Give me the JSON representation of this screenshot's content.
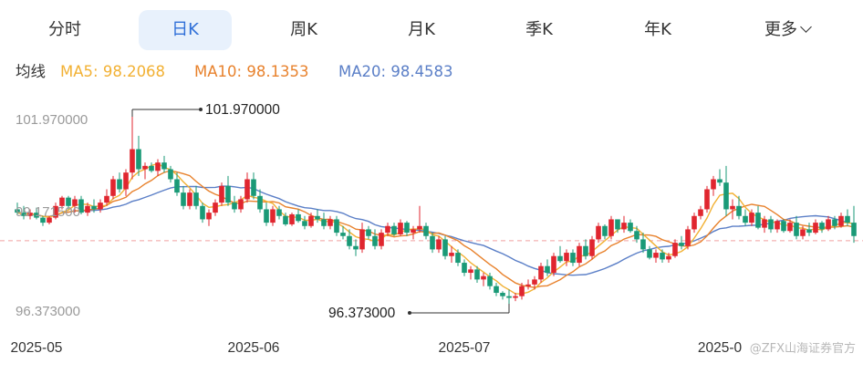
{
  "tabs": [
    {
      "label": "分时",
      "active": false
    },
    {
      "label": "日K",
      "active": true
    },
    {
      "label": "周K",
      "active": false
    },
    {
      "label": "月K",
      "active": false
    },
    {
      "label": "季K",
      "active": false
    },
    {
      "label": "年K",
      "active": false
    },
    {
      "label": "更多",
      "active": false,
      "icon": "chevron-down-icon"
    }
  ],
  "ma_legend": {
    "label": "均线",
    "ma5": "MA5: 98.2068",
    "ma10": "MA10: 98.1353",
    "ma20": "MA20: 98.4583"
  },
  "watermark": "@ZFX山海证券官方",
  "colors": {
    "up": "#e0262f",
    "down": "#1a9a77",
    "ma5": "#f2b134",
    "ma10": "#e8822d",
    "ma20": "#5b7fc7",
    "active_tab": "#2f6fd8",
    "ref_line": "#f0a0a0"
  },
  "chart_data": {
    "type": "candlestick",
    "y_axis_labels": [
      "101.970000",
      "99.171500",
      "96.373000"
    ],
    "ylim": [
      96.373,
      101.97
    ],
    "x_axis_labels": [
      "2025-05",
      "2025-06",
      "2025-07",
      "2025-0"
    ],
    "x_label_index": [
      3,
      37,
      70,
      110
    ],
    "reference_line": 98.26,
    "max_marker": {
      "label": "101.970000",
      "value": 101.97,
      "index": 18
    },
    "min_marker": {
      "label": "96.373000",
      "value": 96.373,
      "index": 77
    },
    "candles": [
      [
        99.2,
        99.4,
        99.05,
        99.1
      ],
      [
        99.1,
        99.3,
        98.9,
        99.0
      ],
      [
        99.0,
        99.2,
        98.9,
        99.1
      ],
      [
        99.1,
        99.25,
        98.9,
        98.95
      ],
      [
        98.95,
        99.0,
        98.7,
        98.8
      ],
      [
        98.8,
        99.0,
        98.75,
        98.95
      ],
      [
        98.95,
        99.4,
        98.9,
        99.3
      ],
      [
        99.3,
        99.6,
        99.2,
        99.55
      ],
      [
        99.55,
        99.6,
        99.2,
        99.3
      ],
      [
        99.3,
        99.6,
        99.1,
        99.5
      ],
      [
        99.5,
        99.6,
        99.05,
        99.1
      ],
      [
        99.1,
        99.4,
        99.0,
        99.3
      ],
      [
        99.3,
        99.5,
        99.1,
        99.2
      ],
      [
        99.2,
        99.5,
        99.1,
        99.4
      ],
      [
        99.4,
        99.8,
        99.3,
        99.6
      ],
      [
        99.6,
        100.2,
        99.5,
        100.1
      ],
      [
        100.1,
        100.3,
        99.7,
        99.8
      ],
      [
        99.8,
        100.4,
        99.6,
        100.3
      ],
      [
        100.3,
        101.97,
        100.1,
        101.0
      ],
      [
        101.0,
        101.4,
        100.2,
        100.4
      ],
      [
        100.4,
        100.6,
        100.1,
        100.5
      ],
      [
        100.5,
        100.6,
        100.3,
        100.35
      ],
      [
        100.35,
        100.7,
        100.2,
        100.6
      ],
      [
        100.6,
        100.8,
        100.3,
        100.4
      ],
      [
        100.4,
        100.5,
        100.0,
        100.1
      ],
      [
        100.1,
        100.3,
        99.6,
        99.7
      ],
      [
        99.7,
        99.9,
        99.2,
        99.3
      ],
      [
        99.3,
        99.8,
        99.2,
        99.7
      ],
      [
        99.7,
        99.9,
        99.2,
        99.3
      ],
      [
        99.3,
        99.4,
        98.8,
        98.9
      ],
      [
        98.9,
        99.2,
        98.7,
        99.1
      ],
      [
        99.1,
        99.5,
        99.0,
        99.4
      ],
      [
        99.4,
        100.0,
        99.3,
        99.9
      ],
      [
        99.9,
        100.2,
        99.3,
        99.4
      ],
      [
        99.4,
        99.6,
        99.1,
        99.2
      ],
      [
        99.2,
        99.6,
        99.1,
        99.5
      ],
      [
        99.5,
        100.3,
        99.4,
        100.1
      ],
      [
        100.1,
        100.3,
        99.5,
        99.6
      ],
      [
        99.6,
        99.8,
        99.1,
        99.2
      ],
      [
        99.2,
        99.4,
        98.7,
        98.8
      ],
      [
        98.8,
        99.3,
        98.7,
        99.2
      ],
      [
        99.2,
        99.3,
        98.9,
        99.0
      ],
      [
        99.0,
        99.1,
        98.7,
        98.75
      ],
      [
        98.75,
        99.1,
        98.7,
        99.05
      ],
      [
        99.05,
        99.2,
        98.8,
        98.85
      ],
      [
        98.85,
        99.0,
        98.6,
        98.7
      ],
      [
        98.7,
        99.1,
        98.65,
        99.0
      ],
      [
        99.0,
        99.2,
        98.8,
        98.9
      ],
      [
        98.9,
        99.1,
        98.6,
        98.7
      ],
      [
        98.7,
        99.0,
        98.6,
        98.9
      ],
      [
        98.9,
        99.0,
        98.4,
        98.5
      ],
      [
        98.5,
        98.7,
        98.3,
        98.4
      ],
      [
        98.4,
        98.6,
        98.0,
        98.1
      ],
      [
        98.1,
        98.3,
        97.8,
        98.0
      ],
      [
        98.0,
        98.8,
        97.9,
        98.6
      ],
      [
        98.6,
        98.7,
        98.3,
        98.4
      ],
      [
        98.4,
        98.6,
        98.0,
        98.1
      ],
      [
        98.1,
        98.6,
        98.0,
        98.5
      ],
      [
        98.5,
        98.8,
        98.4,
        98.7
      ],
      [
        98.7,
        98.8,
        98.4,
        98.45
      ],
      [
        98.45,
        98.9,
        98.4,
        98.8
      ],
      [
        98.8,
        98.85,
        98.4,
        98.5
      ],
      [
        98.5,
        98.7,
        98.3,
        98.6
      ],
      [
        98.6,
        99.3,
        98.5,
        98.7
      ],
      [
        98.7,
        98.8,
        98.3,
        98.4
      ],
      [
        98.4,
        98.5,
        97.9,
        98.0
      ],
      [
        98.0,
        98.4,
        97.9,
        98.3
      ],
      [
        98.3,
        98.4,
        97.7,
        97.8
      ],
      [
        97.8,
        98.1,
        97.6,
        97.9
      ],
      [
        97.9,
        98.0,
        97.5,
        97.6
      ],
      [
        97.6,
        97.7,
        97.2,
        97.3
      ],
      [
        97.3,
        97.5,
        97.1,
        97.4
      ],
      [
        97.4,
        97.5,
        97.0,
        97.1
      ],
      [
        97.1,
        97.3,
        96.9,
        97.2
      ],
      [
        97.2,
        97.3,
        96.8,
        96.9
      ],
      [
        96.9,
        97.0,
        96.6,
        96.7
      ],
      [
        96.7,
        96.75,
        96.5,
        96.6
      ],
      [
        96.6,
        96.8,
        96.373,
        96.55
      ],
      [
        96.55,
        96.7,
        96.45,
        96.6
      ],
      [
        96.6,
        97.0,
        96.5,
        96.9
      ],
      [
        96.9,
        97.1,
        96.8,
        96.95
      ],
      [
        96.95,
        97.2,
        96.8,
        97.1
      ],
      [
        97.1,
        97.6,
        97.0,
        97.5
      ],
      [
        97.5,
        97.7,
        97.2,
        97.3
      ],
      [
        97.3,
        97.9,
        97.2,
        97.8
      ],
      [
        97.8,
        98.1,
        97.6,
        97.65
      ],
      [
        97.65,
        98.0,
        97.5,
        97.9
      ],
      [
        97.9,
        98.0,
        97.5,
        97.6
      ],
      [
        97.6,
        98.2,
        97.5,
        98.1
      ],
      [
        98.1,
        98.3,
        97.7,
        97.8
      ],
      [
        97.8,
        98.4,
        97.7,
        98.3
      ],
      [
        98.3,
        98.8,
        98.2,
        98.7
      ],
      [
        98.7,
        98.75,
        98.3,
        98.4
      ],
      [
        98.4,
        99.0,
        98.3,
        98.9
      ],
      [
        98.9,
        98.9,
        98.5,
        98.6
      ],
      [
        98.6,
        99.0,
        98.5,
        98.8
      ],
      [
        98.8,
        98.9,
        98.5,
        98.55
      ],
      [
        98.55,
        98.7,
        98.2,
        98.3
      ],
      [
        98.3,
        98.5,
        97.9,
        98.0
      ],
      [
        98.0,
        98.1,
        97.7,
        97.75
      ],
      [
        97.75,
        98.0,
        97.6,
        97.9
      ],
      [
        97.9,
        98.0,
        97.6,
        97.7
      ],
      [
        97.7,
        97.9,
        97.6,
        97.8
      ],
      [
        97.8,
        98.3,
        97.75,
        98.2
      ],
      [
        98.2,
        98.4,
        98.0,
        98.1
      ],
      [
        98.1,
        98.7,
        98.0,
        98.6
      ],
      [
        98.6,
        99.1,
        98.5,
        99.0
      ],
      [
        99.0,
        99.3,
        98.9,
        99.2
      ],
      [
        99.2,
        99.9,
        99.1,
        99.8
      ],
      [
        99.8,
        100.2,
        99.6,
        100.1
      ],
      [
        100.1,
        100.4,
        99.9,
        100.0
      ],
      [
        100.0,
        100.5,
        99.0,
        99.2
      ],
      [
        99.2,
        99.5,
        98.9,
        99.3
      ],
      [
        99.3,
        99.6,
        98.9,
        99.0
      ],
      [
        99.0,
        99.2,
        98.7,
        98.8
      ],
      [
        98.8,
        99.2,
        98.7,
        99.1
      ],
      [
        99.1,
        99.3,
        98.6,
        98.65
      ],
      [
        98.65,
        99.0,
        98.5,
        98.9
      ],
      [
        98.9,
        99.0,
        98.5,
        98.6
      ],
      [
        98.6,
        98.9,
        98.5,
        98.85
      ],
      [
        98.85,
        98.9,
        98.5,
        98.55
      ],
      [
        98.55,
        98.9,
        98.5,
        98.8
      ],
      [
        98.8,
        99.0,
        98.3,
        98.4
      ],
      [
        98.4,
        98.7,
        98.3,
        98.6
      ],
      [
        98.6,
        98.8,
        98.4,
        98.5
      ],
      [
        98.5,
        98.9,
        98.45,
        98.8
      ],
      [
        98.8,
        98.85,
        98.5,
        98.6
      ],
      [
        98.6,
        99.0,
        98.55,
        98.9
      ],
      [
        98.9,
        99.0,
        98.6,
        98.7
      ],
      [
        98.7,
        99.1,
        98.65,
        99.0
      ],
      [
        99.0,
        99.2,
        98.7,
        98.8
      ],
      [
        98.8,
        99.3,
        98.2,
        98.4
      ]
    ]
  }
}
